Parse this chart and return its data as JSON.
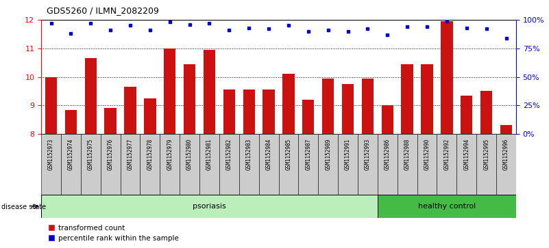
{
  "title": "GDS5260 / ILMN_2082209",
  "samples": [
    "GSM1152973",
    "GSM1152974",
    "GSM1152975",
    "GSM1152976",
    "GSM1152977",
    "GSM1152978",
    "GSM1152979",
    "GSM1152980",
    "GSM1152981",
    "GSM1152982",
    "GSM1152983",
    "GSM1152984",
    "GSM1152985",
    "GSM1152987",
    "GSM1152989",
    "GSM1152991",
    "GSM1152993",
    "GSM1152986",
    "GSM1152988",
    "GSM1152990",
    "GSM1152992",
    "GSM1152994",
    "GSM1152995",
    "GSM1152996"
  ],
  "bar_values": [
    10.0,
    8.85,
    10.65,
    8.9,
    9.65,
    9.25,
    11.0,
    10.45,
    10.95,
    9.55,
    9.55,
    9.55,
    10.1,
    9.2,
    9.95,
    9.75,
    9.95,
    9.0,
    10.45,
    10.45,
    11.95,
    9.35,
    9.5,
    8.3
  ],
  "percentile_values": [
    97,
    88,
    97,
    91,
    95,
    91,
    98,
    96,
    97,
    91,
    93,
    92,
    95,
    90,
    91,
    90,
    92,
    87,
    94,
    94,
    99,
    93,
    92,
    84
  ],
  "psoriasis_count": 17,
  "healthy_count": 7,
  "ylim_left": [
    8,
    12
  ],
  "ylim_right": [
    0,
    100
  ],
  "yticks_left": [
    8,
    9,
    10,
    11,
    12
  ],
  "yticks_right": [
    0,
    25,
    50,
    75,
    100
  ],
  "ytick_labels_right": [
    "0%",
    "25%",
    "50%",
    "75%",
    "100%"
  ],
  "bar_color": "#cc1111",
  "dot_color": "#0000cc",
  "psoriasis_bg": "#bbeebb",
  "healthy_bg": "#44bb44",
  "label_bg": "#cccccc",
  "disease_state_label": "disease state",
  "psoriasis_label": "psoriasis",
  "healthy_label": "healthy control",
  "legend_bar": "transformed count",
  "legend_dot": "percentile rank within the sample"
}
